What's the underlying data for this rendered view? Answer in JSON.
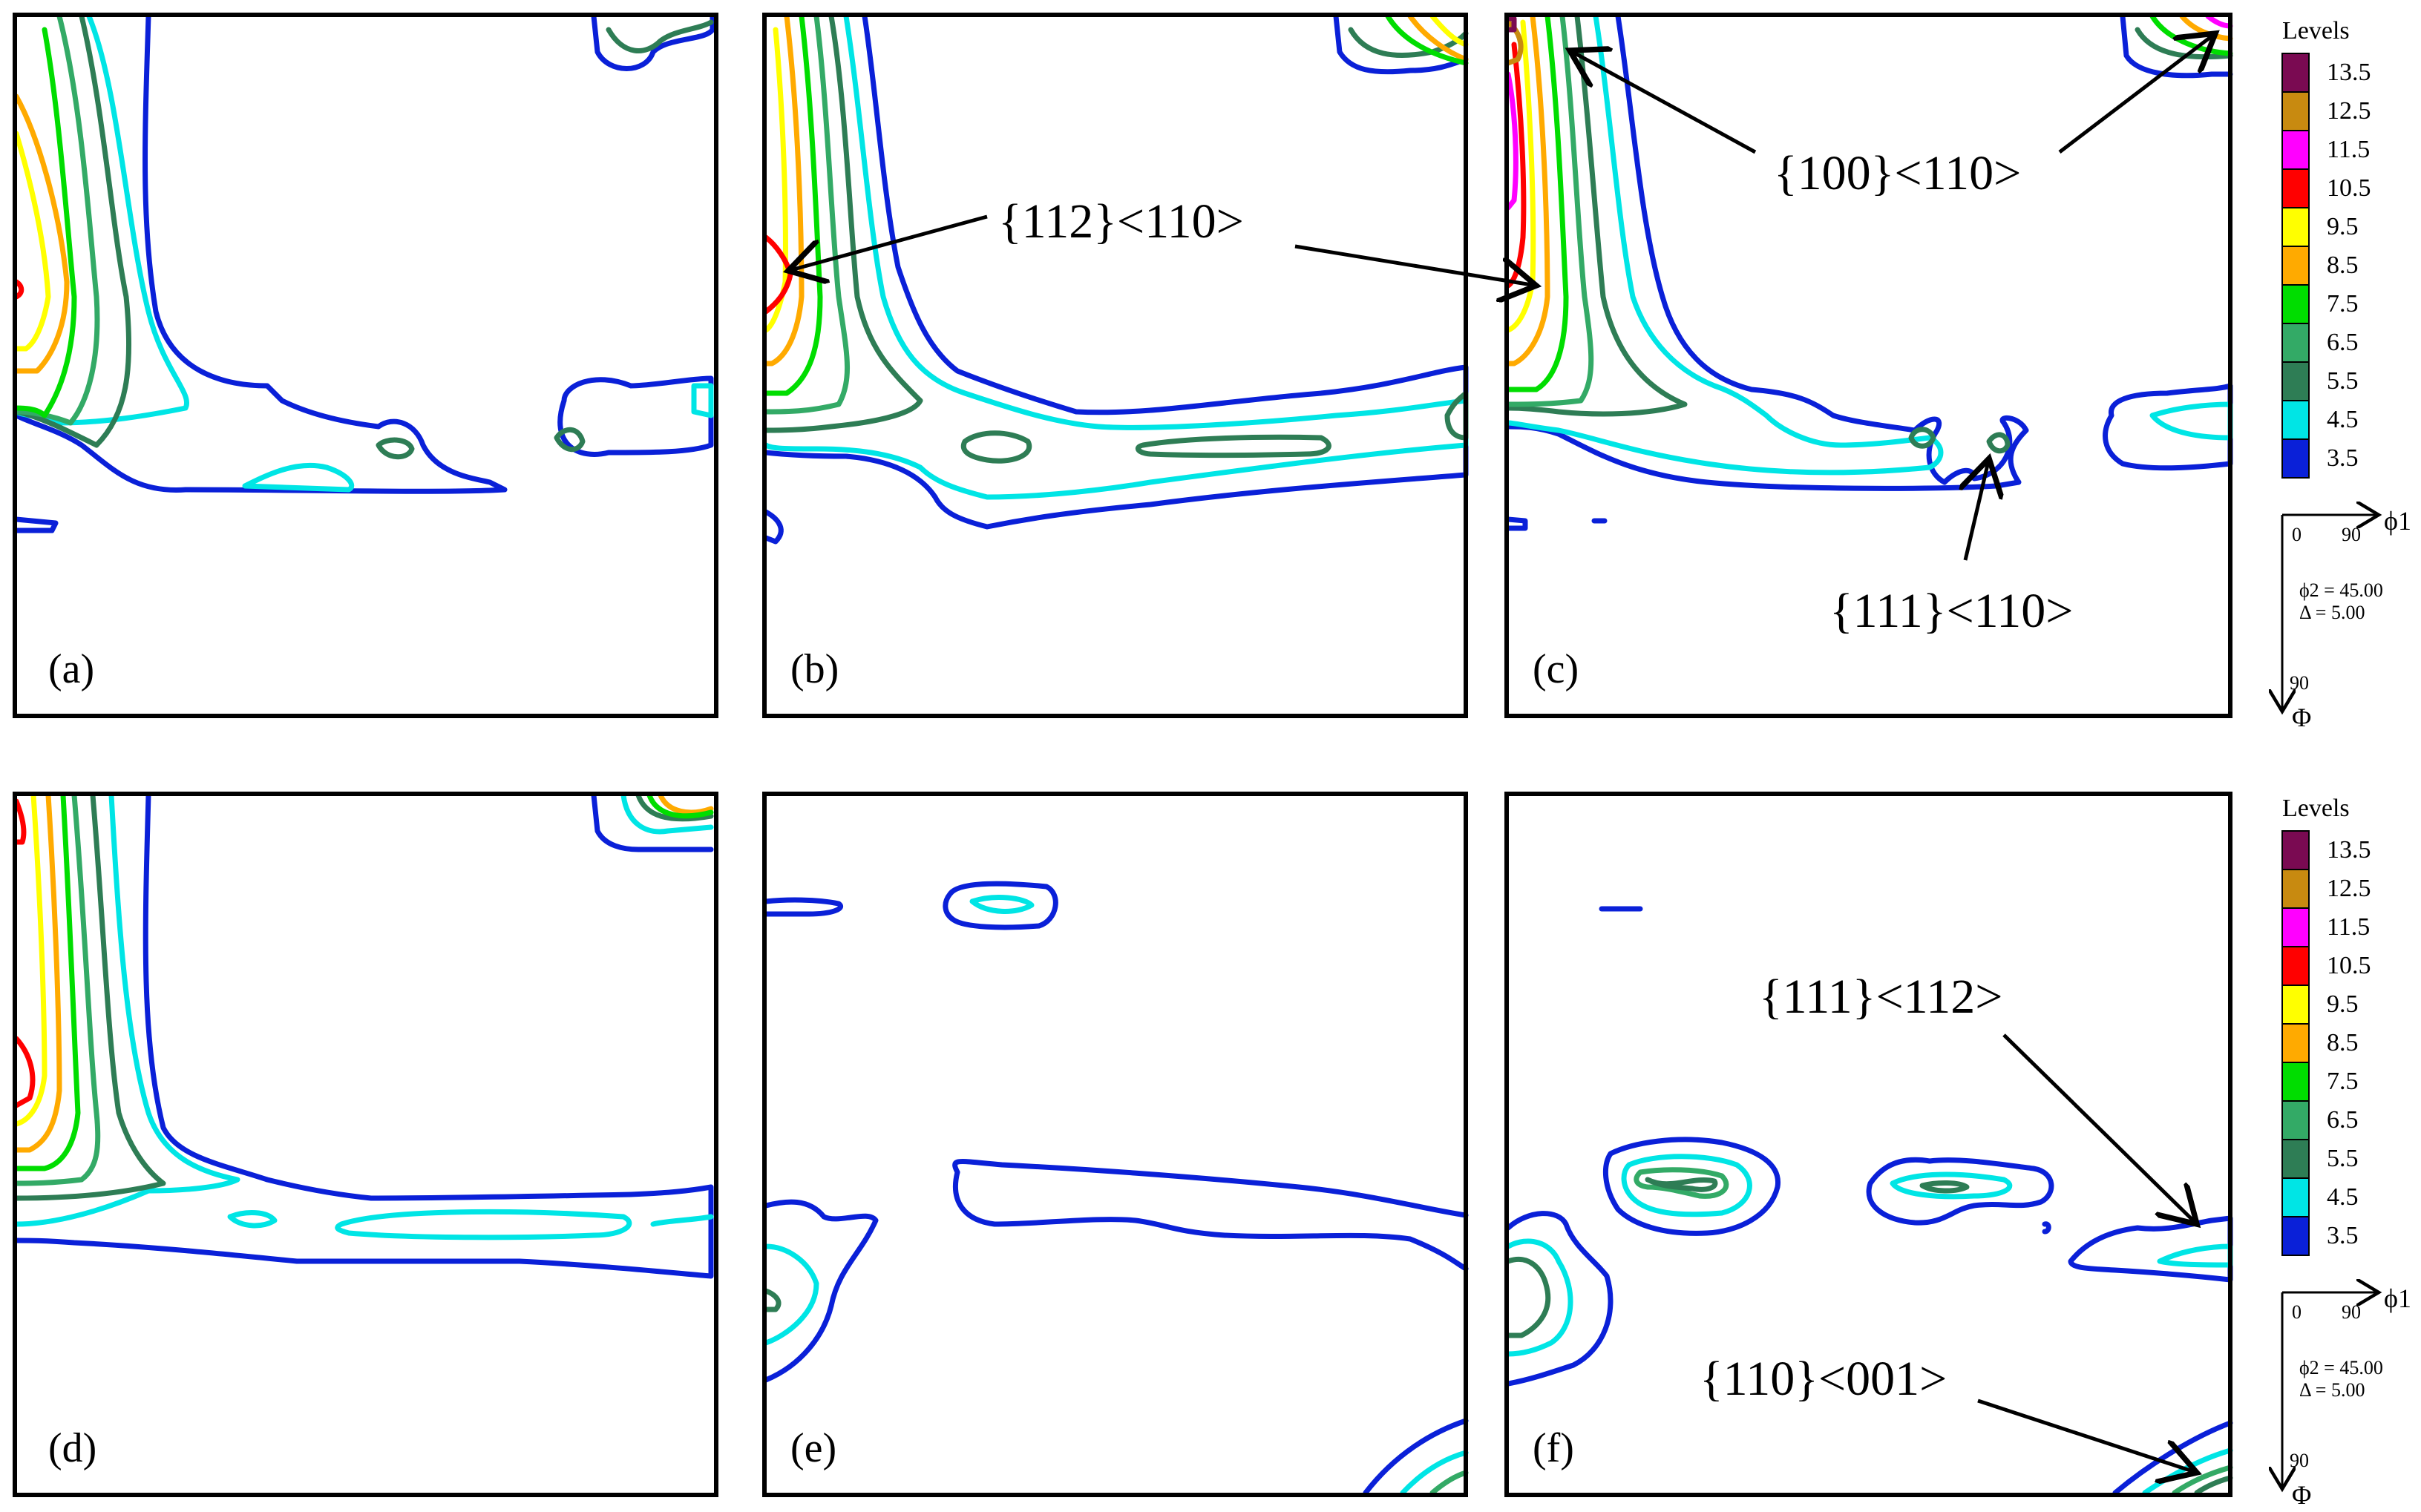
{
  "panels": [
    {
      "label": "(a)"
    },
    {
      "label": "(b)"
    },
    {
      "label": "(c)"
    },
    {
      "label": "(d)"
    },
    {
      "label": "(e)"
    },
    {
      "label": "(f)"
    }
  ],
  "annotations": {
    "a112_110": "{112}<110>",
    "a100_110": "{100}<110>",
    "a111_110": "{111}<110>",
    "a111_112": "{111}<112>",
    "a110_001": "{110}<001>"
  },
  "legend": {
    "title": "Levels",
    "levels": [
      "13.5",
      "12.5",
      "11.5",
      "10.5",
      "9.5",
      "8.5",
      "7.5",
      "6.5",
      "5.5",
      "4.5",
      "3.5"
    ],
    "colors": [
      "#7a0a52",
      "#c88a10",
      "#ff00ff",
      "#ff0000",
      "#ffff00",
      "#ffaa00",
      "#00dd00",
      "#33aa66",
      "#2e7d55",
      "#00e5e5",
      "#0a20d8"
    ]
  },
  "axes": {
    "zero": "0",
    "ninety_x": "90",
    "phi1": "ϕ1",
    "phi2_line": "ϕ2 = 45.00",
    "delta_line": "Δ = 5.00",
    "ninety_y": "90",
    "Phi": "Φ"
  }
}
